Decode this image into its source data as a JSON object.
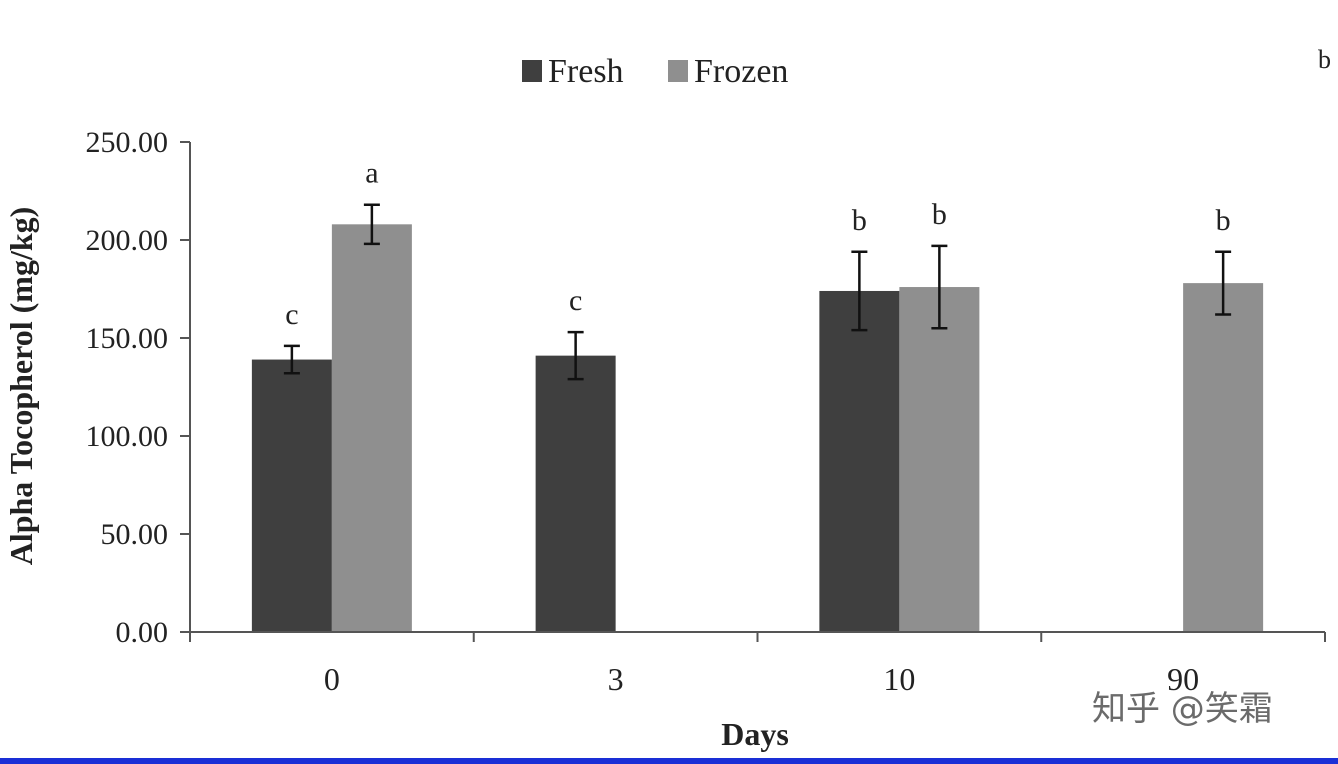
{
  "chart_data": {
    "type": "bar",
    "categories": [
      "0",
      "3",
      "10",
      "90"
    ],
    "xlabel": "Days",
    "ylabel": "Alpha Tocopherol (mg/kg)",
    "ylim": [
      0,
      250
    ],
    "yticks": [
      "0.00",
      "50.00",
      "100.00",
      "150.00",
      "200.00",
      "250.00"
    ],
    "grid": false,
    "legend_position": "top",
    "series": [
      {
        "name": "Fresh",
        "color": "#3f3f3f",
        "values": [
          139,
          141,
          174,
          null
        ],
        "errors": [
          7,
          12,
          20,
          null
        ],
        "labels": [
          "c",
          "c",
          "b",
          ""
        ]
      },
      {
        "name": "Frozen",
        "color": "#8f8f8f",
        "values": [
          208,
          null,
          176,
          178
        ],
        "errors": [
          10,
          null,
          21,
          16
        ],
        "labels": [
          "a",
          "",
          "b",
          "b"
        ]
      }
    ]
  },
  "corner_text": "b",
  "watermark": "知乎 @笑霜"
}
